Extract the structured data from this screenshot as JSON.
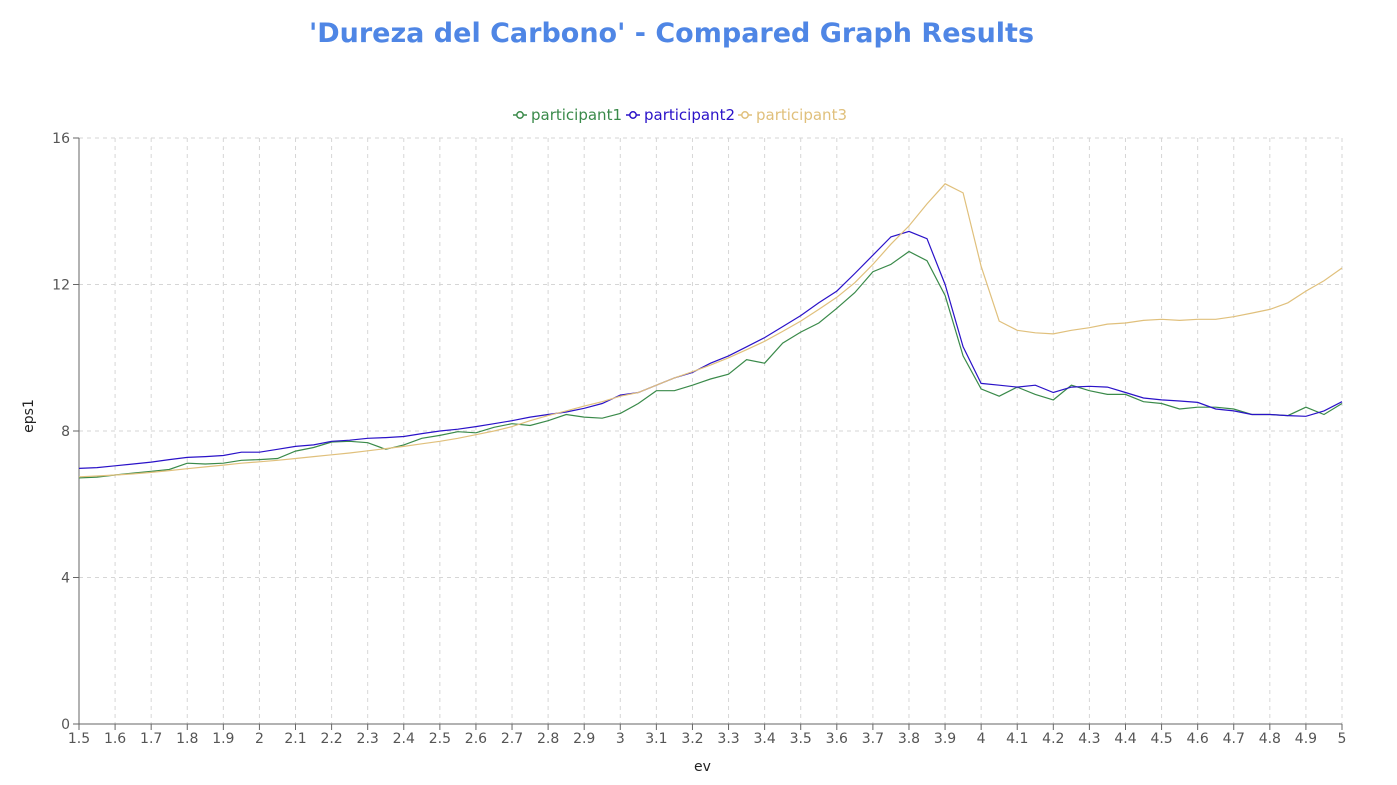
{
  "chart_data": {
    "type": "line",
    "title": "'Dureza del Carbono' - Compared Graph Results",
    "xlabel": "ev",
    "ylabel": "eps1",
    "xlim": [
      1.5,
      5
    ],
    "ylim": [
      0,
      16
    ],
    "grid": true,
    "legend_position": "top-center",
    "x_ticks": [
      "1.5",
      "1.6",
      "1.7",
      "1.8",
      "1.9",
      "2",
      "2.1",
      "2.2",
      "2.3",
      "2.4",
      "2.5",
      "2.6",
      "2.7",
      "2.8",
      "2.9",
      "3",
      "3.1",
      "3.2",
      "3.3",
      "3.4",
      "3.5",
      "3.6",
      "3.7",
      "3.8",
      "3.9",
      "4",
      "4.1",
      "4.2",
      "4.3",
      "4.4",
      "4.5",
      "4.6",
      "4.7",
      "4.8",
      "4.9",
      "5"
    ],
    "y_ticks": [
      "0",
      "4",
      "8",
      "12",
      "16"
    ],
    "x": [
      1.5,
      1.55,
      1.6,
      1.65,
      1.7,
      1.75,
      1.8,
      1.85,
      1.9,
      1.95,
      2.0,
      2.05,
      2.1,
      2.15,
      2.2,
      2.25,
      2.3,
      2.35,
      2.4,
      2.45,
      2.5,
      2.55,
      2.6,
      2.65,
      2.7,
      2.75,
      2.8,
      2.85,
      2.9,
      2.95,
      3.0,
      3.05,
      3.1,
      3.15,
      3.2,
      3.25,
      3.3,
      3.35,
      3.4,
      3.45,
      3.5,
      3.55,
      3.6,
      3.65,
      3.7,
      3.75,
      3.8,
      3.85,
      3.9,
      3.95,
      4.0,
      4.05,
      4.1,
      4.15,
      4.2,
      4.25,
      4.3,
      4.35,
      4.4,
      4.45,
      4.5,
      4.55,
      4.6,
      4.65,
      4.7,
      4.75,
      4.8,
      4.85,
      4.9,
      4.95,
      5.0
    ],
    "series": [
      {
        "name": "participant1",
        "color": "#3a8a4a",
        "values": [
          6.72,
          6.74,
          6.8,
          6.85,
          6.9,
          6.95,
          7.12,
          7.1,
          7.12,
          7.2,
          7.22,
          7.25,
          7.45,
          7.55,
          7.7,
          7.72,
          7.68,
          7.5,
          7.62,
          7.8,
          7.88,
          7.98,
          7.95,
          8.1,
          8.2,
          8.15,
          8.28,
          8.45,
          8.38,
          8.35,
          8.48,
          8.75,
          9.1,
          9.1,
          9.25,
          9.42,
          9.55,
          9.95,
          9.85,
          10.4,
          10.7,
          10.95,
          11.35,
          11.78,
          12.35,
          12.55,
          12.9,
          12.65,
          11.7,
          10.05,
          9.15,
          8.95,
          9.2,
          9.0,
          8.85,
          9.25,
          9.1,
          9.0,
          9.0,
          8.8,
          8.75,
          8.6,
          8.65,
          8.65,
          8.6,
          8.45,
          8.45,
          8.42,
          8.65,
          8.45,
          8.75
        ]
      },
      {
        "name": "participant2",
        "color": "#2a12c8",
        "values": [
          6.98,
          7.0,
          7.05,
          7.1,
          7.15,
          7.22,
          7.28,
          7.3,
          7.33,
          7.42,
          7.42,
          7.5,
          7.58,
          7.62,
          7.72,
          7.75,
          7.8,
          7.82,
          7.85,
          7.93,
          8.0,
          8.05,
          8.12,
          8.2,
          8.28,
          8.38,
          8.45,
          8.52,
          8.62,
          8.75,
          8.98,
          9.05,
          9.25,
          9.45,
          9.6,
          9.85,
          10.05,
          10.3,
          10.55,
          10.85,
          11.15,
          11.5,
          11.82,
          12.3,
          12.8,
          13.3,
          13.45,
          13.25,
          12.0,
          10.3,
          9.3,
          9.25,
          9.2,
          9.25,
          9.05,
          9.2,
          9.22,
          9.2,
          9.05,
          8.9,
          8.85,
          8.82,
          8.78,
          8.6,
          8.55,
          8.45,
          8.45,
          8.42,
          8.4,
          8.55,
          8.8
        ]
      },
      {
        "name": "participant3",
        "color": "#e0c07c",
        "values": [
          6.75,
          6.77,
          6.8,
          6.83,
          6.87,
          6.92,
          6.97,
          7.02,
          7.07,
          7.12,
          7.16,
          7.2,
          7.25,
          7.3,
          7.35,
          7.4,
          7.46,
          7.52,
          7.58,
          7.65,
          7.72,
          7.8,
          7.9,
          8.0,
          8.12,
          8.28,
          8.42,
          8.55,
          8.68,
          8.8,
          8.95,
          9.05,
          9.25,
          9.45,
          9.62,
          9.8,
          10.0,
          10.22,
          10.45,
          10.72,
          11.0,
          11.32,
          11.65,
          12.05,
          12.55,
          13.1,
          13.6,
          14.2,
          14.75,
          14.5,
          12.5,
          11.0,
          10.75,
          10.68,
          10.65,
          10.75,
          10.82,
          10.92,
          10.95,
          11.02,
          11.05,
          11.02,
          11.05,
          11.05,
          11.12,
          11.22,
          11.32,
          11.5,
          11.82,
          12.1,
          12.45
        ]
      }
    ]
  }
}
